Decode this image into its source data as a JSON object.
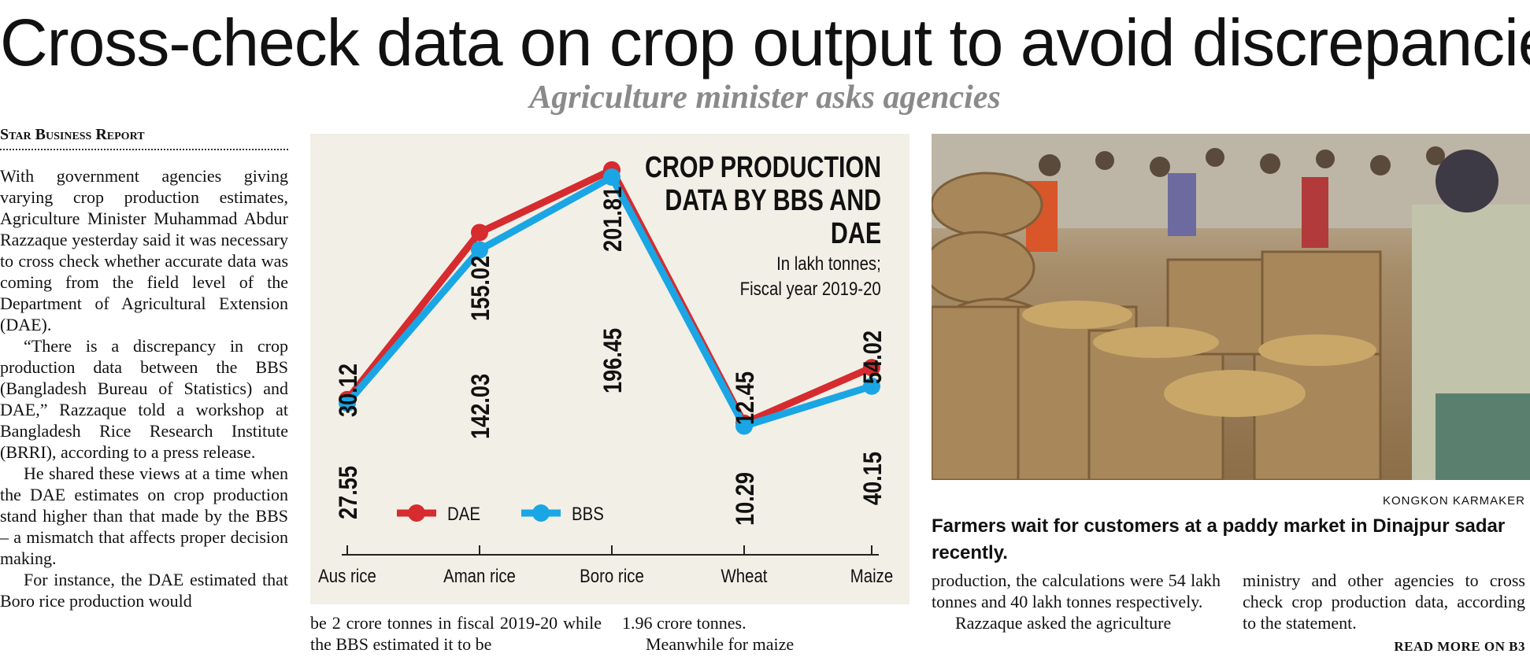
{
  "headline": "Cross-check data on crop output to avoid discrepancies",
  "subheadline": "Agriculture minister asks agencies",
  "byline": "Star Business Report",
  "column1": [
    "With government agencies giving varying crop production estimates, Agriculture Minister Muhammad Abdur Razzaque yesterday said it was necessary to cross check whether accurate data was coming from the field level of the Department of Agricultural Extension (DAE).",
    "“There is a discrepancy in crop production data between the BBS (Bangladesh Bureau of Statistics) and DAE,” Razzaque told a workshop at Bangladesh Rice Research Institute (BRRI), according to a press release.",
    "He shared these views at a time when the DAE estimates on crop production stand higher than that made by the BBS – a mismatch that affects proper decision making.",
    "For instance, the DAE estimated that Boro rice production would"
  ],
  "column2_text": "be 2 crore tonnes in fiscal 2019-20 while the BBS estimated it to be",
  "column3_text": "1.96 crore tonnes.",
  "column3_text2": "Meanwhile for maize",
  "column4_text": "production, the calculations were 54 lakh tonnes and 40 lakh tonnes respectively.",
  "column4_text2": "Razzaque asked the agriculture",
  "column5_text": "ministry and other agencies to cross check crop production data, according to the statement.",
  "read_more": "READ MORE ON B3",
  "photo": {
    "credit": "KONGKON KARMAKER",
    "caption": "Farmers wait for customers at a paddy market in Dinajpur sadar recently."
  },
  "chart_data": {
    "type": "line",
    "title_lines": [
      "CROP PRODUCTION",
      "DATA BY BBS AND",
      "DAE"
    ],
    "unit_lines": [
      "In lakh tonnes;",
      "Fiscal year 2019-20"
    ],
    "categories": [
      "Aus rice",
      "Aman rice",
      "Boro rice",
      "Wheat",
      "Maize"
    ],
    "series": [
      {
        "name": "DAE",
        "color": "#d62b2f",
        "values": [
          30.12,
          155.02,
          201.81,
          12.45,
          54.02
        ]
      },
      {
        "name": "BBS",
        "color": "#1aa6e4",
        "values": [
          27.55,
          142.03,
          196.45,
          10.29,
          40.15
        ]
      }
    ],
    "xlabel": "",
    "ylabel": "",
    "legend": "bottom-left",
    "grid": false
  }
}
